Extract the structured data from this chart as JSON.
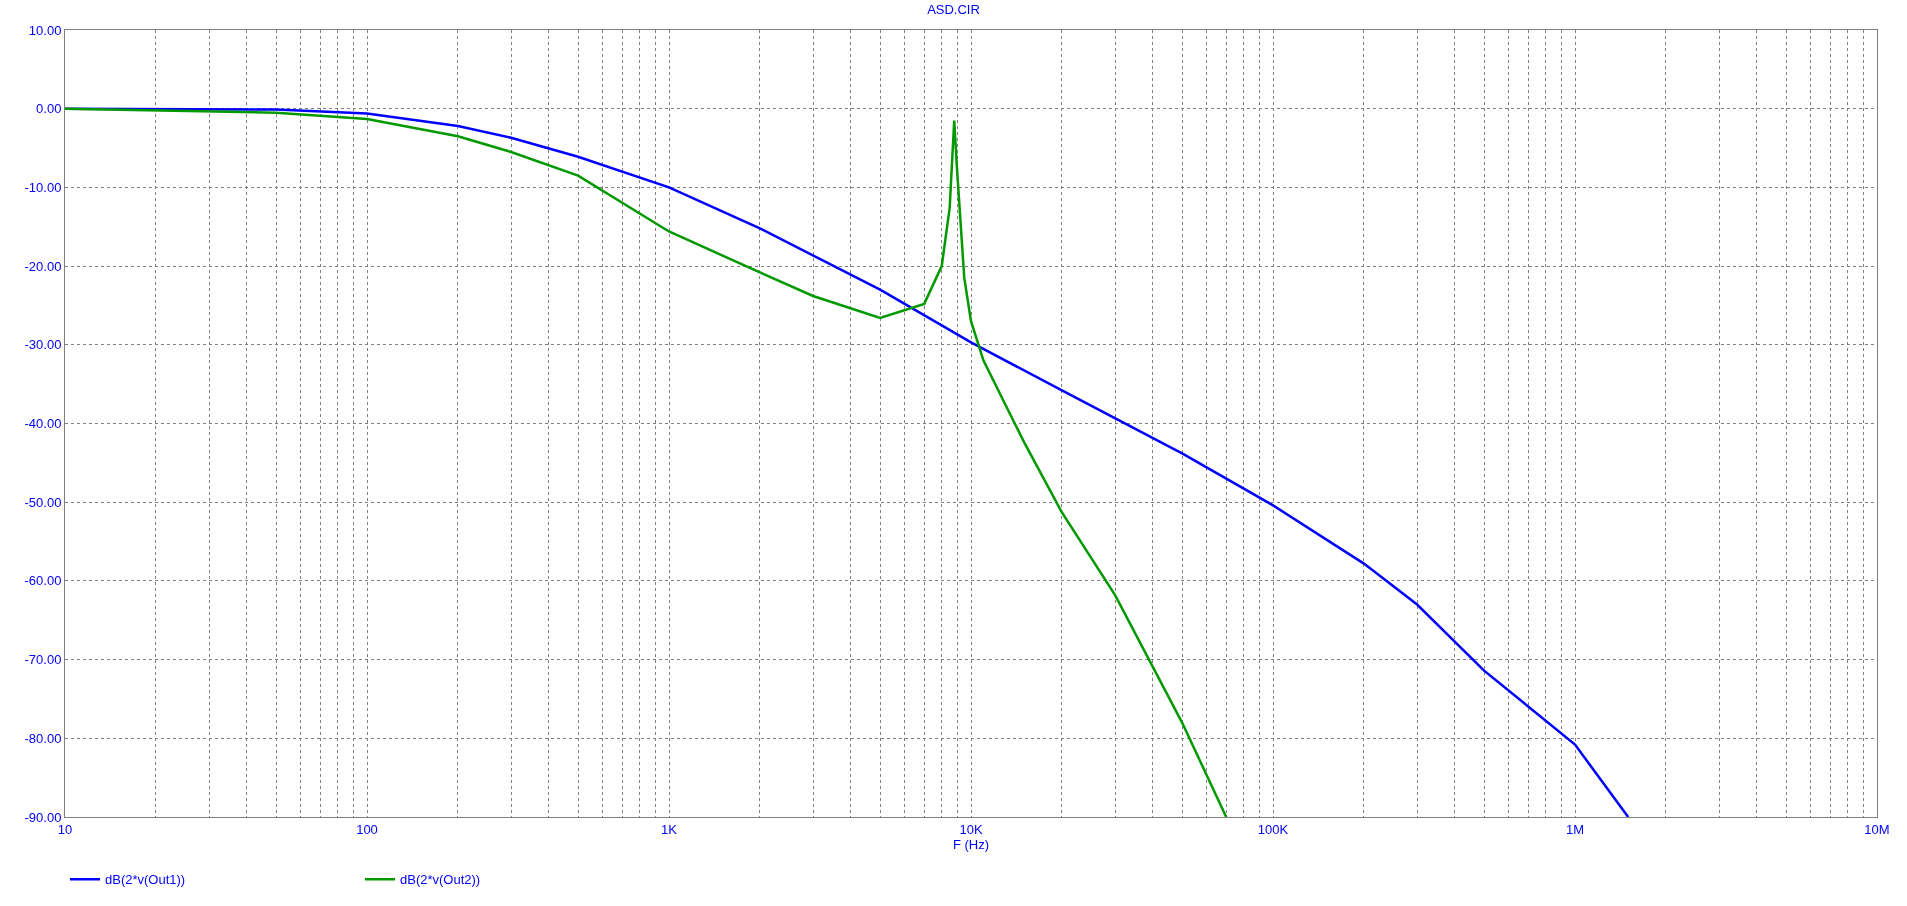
{
  "chart_data": {
    "type": "line",
    "title": "ASD.CIR",
    "xlabel": "F (Hz)",
    "log": "x",
    "grid": true,
    "legend": "bottom left",
    "line_style": "solid",
    "marker": "none",
    "xlim": [
      10,
      10000000
    ],
    "xticks": [
      10,
      {
        "value": 20,
        "label": null
      },
      {
        "value": 30,
        "label": null
      },
      {
        "value": 40,
        "label": null
      },
      {
        "value": 50,
        "label": null
      },
      {
        "value": 60,
        "label": null
      },
      {
        "value": 70,
        "label": null
      },
      {
        "value": 80,
        "label": null
      },
      {
        "value": 90,
        "label": null
      },
      100,
      {
        "value": 200,
        "label": null
      },
      {
        "value": 300,
        "label": null
      },
      {
        "value": 400,
        "label": null
      },
      {
        "value": 500,
        "label": null
      },
      {
        "value": 600,
        "label": null
      },
      {
        "value": 700,
        "label": null
      },
      {
        "value": 800,
        "label": null
      },
      {
        "value": 900,
        "label": null
      },
      {
        "value": 1000,
        "label": "1K"
      },
      {
        "value": 2000,
        "label": null
      },
      {
        "value": 3000,
        "label": null
      },
      {
        "value": 4000,
        "label": null
      },
      {
        "value": 5000,
        "label": null
      },
      {
        "value": 6000,
        "label": null
      },
      {
        "value": 7000,
        "label": null
      },
      {
        "value": 8000,
        "label": null
      },
      {
        "value": 9000,
        "label": null
      },
      {
        "value": 10000,
        "label": "10K"
      },
      {
        "value": 20000,
        "label": null
      },
      {
        "value": 30000,
        "label": null
      },
      {
        "value": 40000,
        "label": null
      },
      {
        "value": 50000,
        "label": null
      },
      {
        "value": 60000,
        "label": null
      },
      {
        "value": 70000,
        "label": null
      },
      {
        "value": 80000,
        "label": null
      },
      {
        "value": 90000,
        "label": null
      },
      {
        "value": 100000,
        "label": "100K"
      },
      {
        "value": 200000,
        "label": null
      },
      {
        "value": 300000,
        "label": null
      },
      {
        "value": 400000,
        "label": null
      },
      {
        "value": 500000,
        "label": null
      },
      {
        "value": 600000,
        "label": null
      },
      {
        "value": 700000,
        "label": null
      },
      {
        "value": 800000,
        "label": null
      },
      {
        "value": 900000,
        "label": null
      },
      {
        "value": 1000000,
        "label": "1M"
      },
      {
        "value": 2000000,
        "label": null
      },
      {
        "value": 3000000,
        "label": null
      },
      {
        "value": 4000000,
        "label": null
      },
      {
        "value": 5000000,
        "label": null
      },
      {
        "value": 6000000,
        "label": null
      },
      {
        "value": 7000000,
        "label": null
      },
      {
        "value": 8000000,
        "label": null
      },
      {
        "value": 9000000,
        "label": null
      },
      {
        "value": 10000000,
        "label": "10M"
      }
    ],
    "ylim": [
      -90,
      10
    ],
    "yticks": [
      {
        "value": 10,
        "label": "10.00"
      },
      {
        "value": 0,
        "label": "0.00"
      },
      {
        "value": -10,
        "label": "-10.00"
      },
      {
        "value": -20,
        "label": "-20.00"
      },
      {
        "value": -30,
        "label": "-30.00"
      },
      {
        "value": -40,
        "label": "-40.00"
      },
      {
        "value": -50,
        "label": "-50.00"
      },
      {
        "value": -60,
        "label": "-60.00"
      },
      {
        "value": -70,
        "label": "-70.00"
      },
      {
        "value": -80,
        "label": "-80.00"
      },
      {
        "value": -90,
        "label": "-90.00"
      }
    ],
    "series": [
      {
        "name": "dB(2*v(Out1))",
        "color": "#0000ff",
        "x": [
          10,
          50,
          100,
          200,
          300,
          500,
          1000,
          2000,
          5000,
          10000,
          20000,
          50000,
          100000,
          200000,
          300000,
          500000,
          1000000,
          1500000
        ],
        "values": [
          0,
          -0.1,
          -0.6,
          -2.2,
          -3.7,
          -6.1,
          -10,
          -15.2,
          -23,
          -29.7,
          -35.8,
          -43.8,
          -50.4,
          -57.8,
          -63,
          -71.4,
          -80.8,
          -90
        ]
      },
      {
        "name": "dB(2*v(Out2))",
        "color": "#009900",
        "x": [
          10,
          50,
          100,
          200,
          300,
          500,
          1000,
          2000,
          3000,
          5000,
          7000,
          8000,
          8500,
          8800,
          9000,
          9500,
          10000,
          11000,
          15000,
          20000,
          30000,
          50000,
          70000
        ],
        "values": [
          0,
          -0.5,
          -1.3,
          -3.5,
          -5.5,
          -8.5,
          -15.6,
          -20.8,
          -23.8,
          -26.6,
          -24.8,
          -20,
          -12.6,
          -1.5,
          -8,
          -21.5,
          -27,
          -32,
          -42.4,
          -51.3,
          -61.8,
          -78,
          -90
        ]
      }
    ]
  }
}
